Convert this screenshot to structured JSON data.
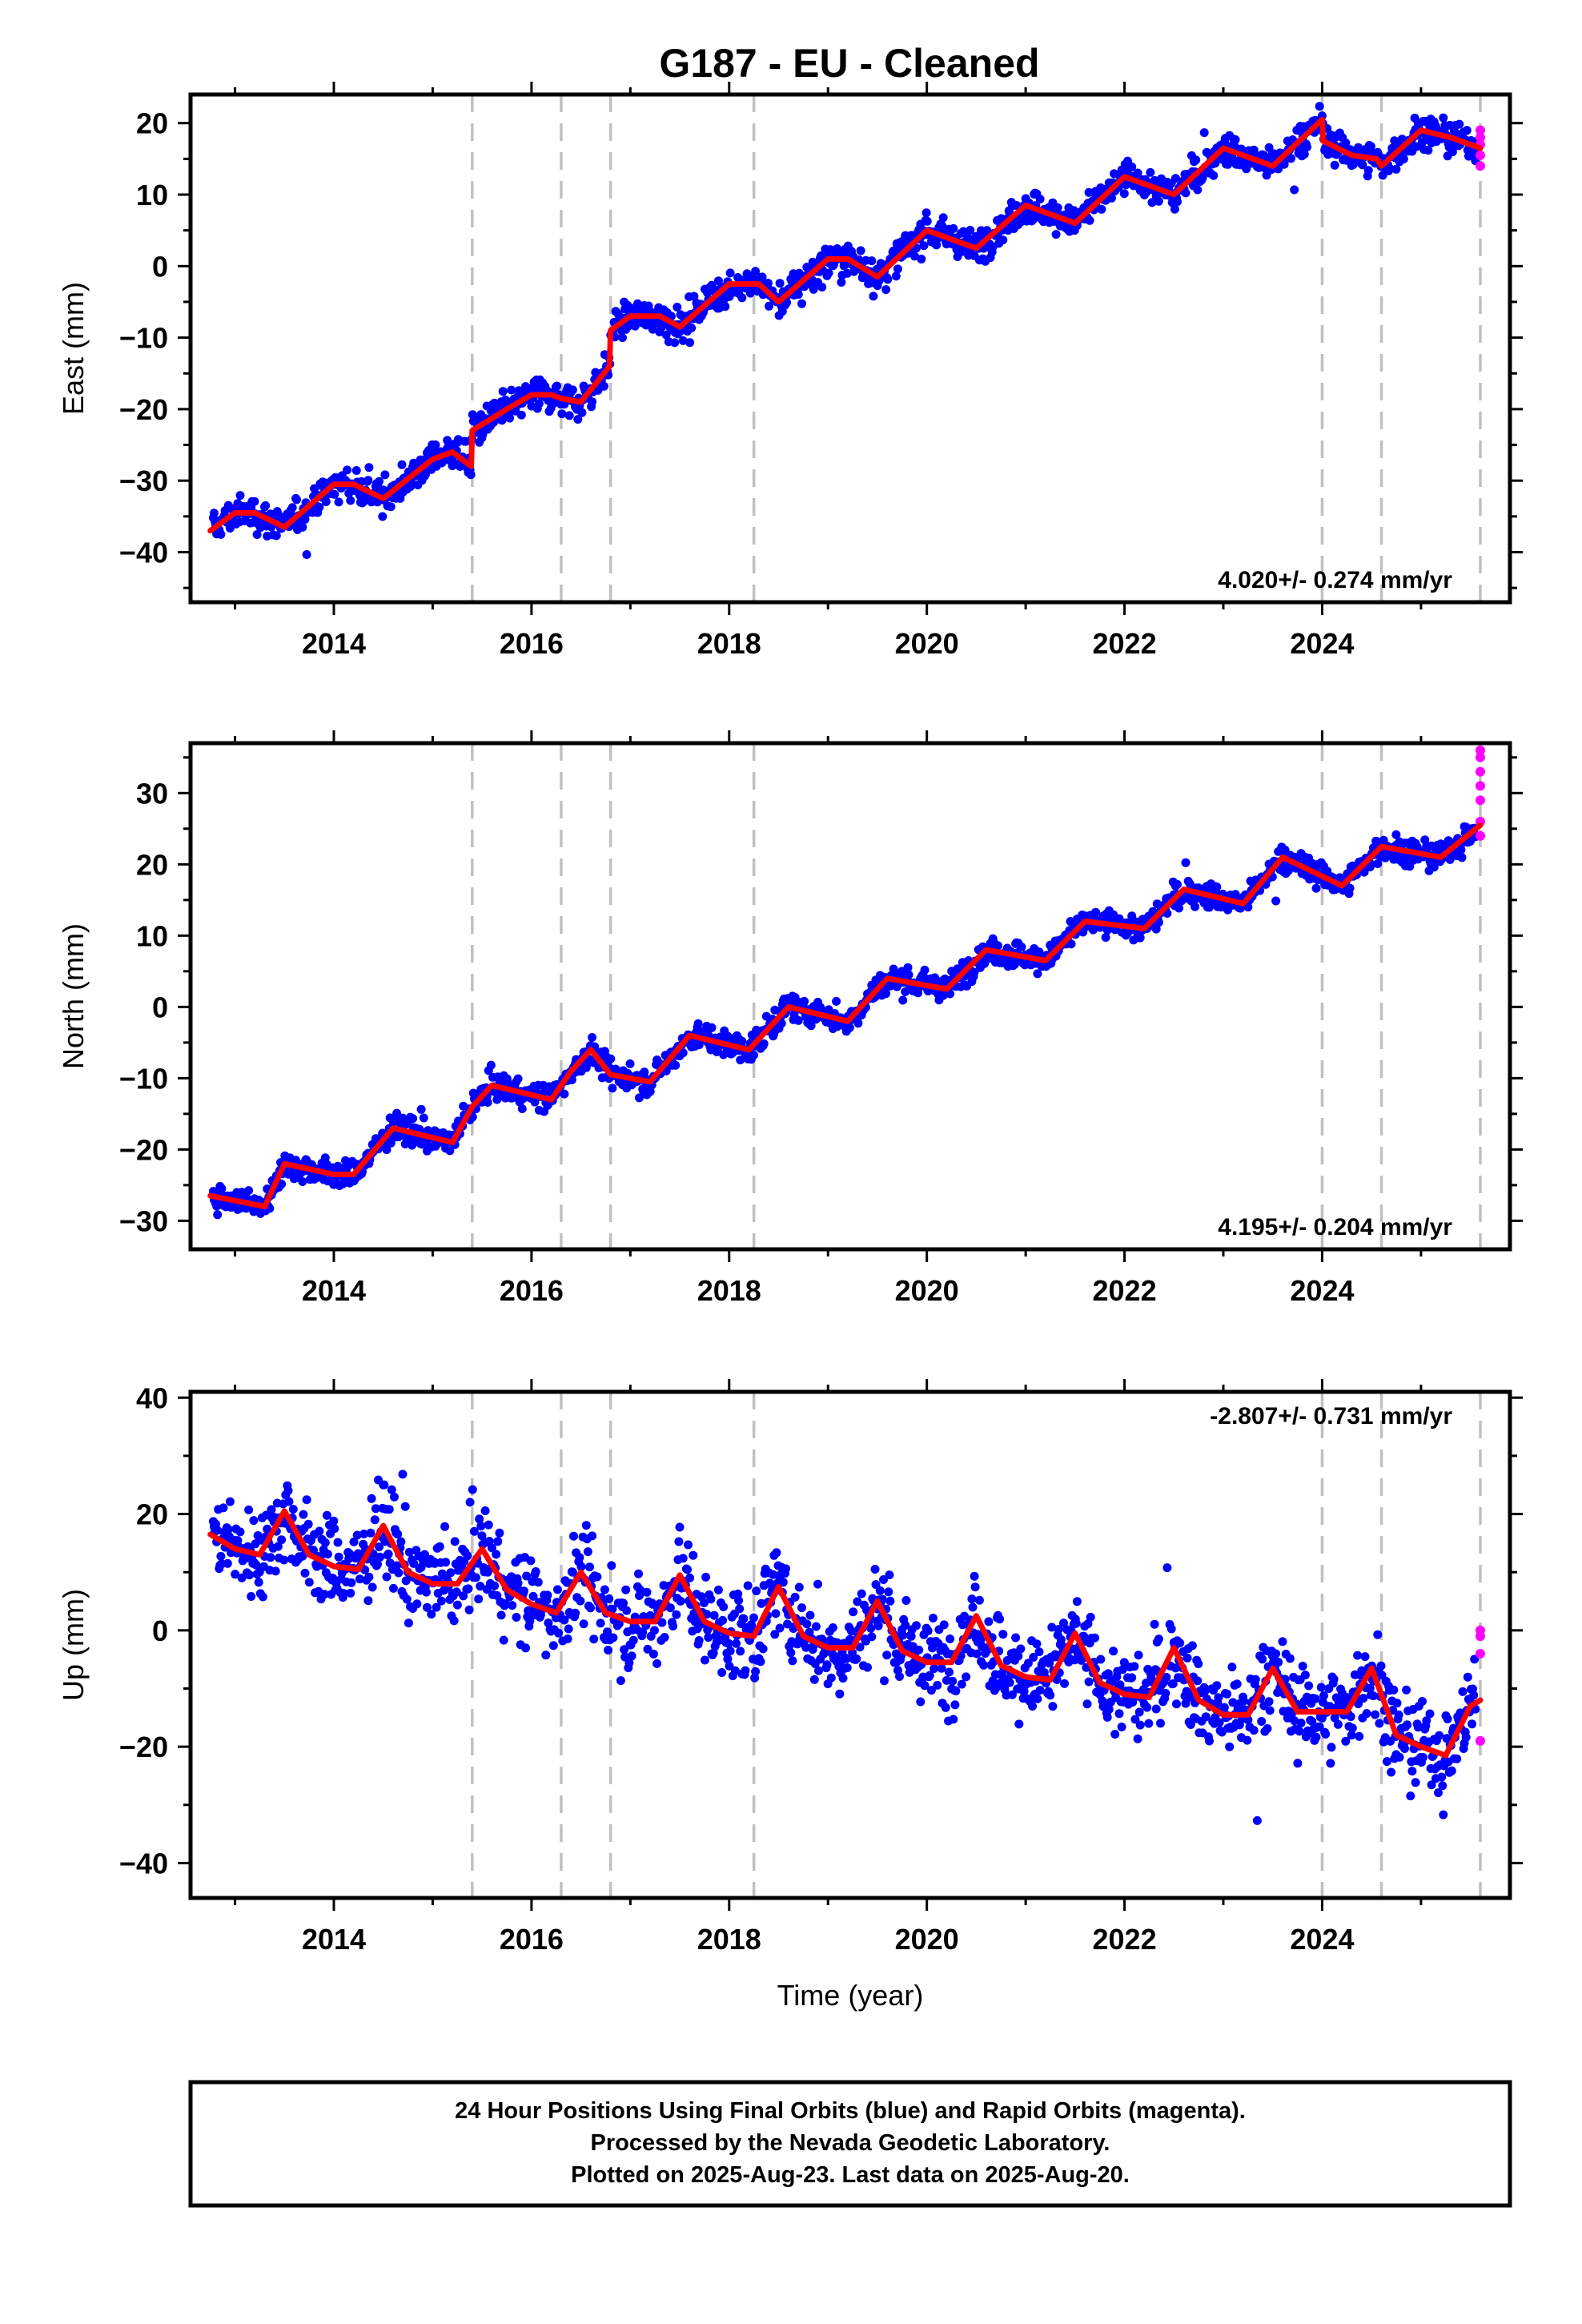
{
  "title": "G187  - EU - Cleaned",
  "colors": {
    "final_orbits": "#0000ff",
    "rapid_orbits": "#ff00ff",
    "model": "#ff0000",
    "offsets": "#c0c0c0",
    "frame": "#000000"
  },
  "chart_data": [
    {
      "type": "scatter",
      "ylabel": "East (mm)",
      "rate": "4.020+/- 0.274 mm/yr",
      "xlim": [
        2012.55,
        2025.9
      ],
      "ylim": [
        -47,
        24
      ],
      "x_ticks": [
        2014,
        2016,
        2018,
        2020,
        2022,
        2024
      ],
      "y_ticks": [
        -40,
        -30,
        -20,
        -10,
        0,
        10,
        20
      ],
      "offset_lines": [
        2015.4,
        2016.3,
        2016.8,
        2018.25,
        2024.0,
        2024.6,
        2025.6
      ],
      "series": [
        {
          "kind": "model",
          "x": [
            2012.75,
            2013.0,
            2013.2,
            2013.5,
            2014.0,
            2014.2,
            2014.5,
            2015.0,
            2015.2,
            2015.39,
            2015.4,
            2015.75,
            2016.0,
            2016.2,
            2016.3,
            2016.5,
            2016.79,
            2016.8,
            2017.0,
            2017.3,
            2017.5,
            2018.0,
            2018.3,
            2018.5,
            2019.0,
            2019.2,
            2019.5,
            2020.0,
            2020.5,
            2021.0,
            2021.5,
            2022.0,
            2022.5,
            2023.0,
            2023.5,
            2024.0,
            2024.01,
            2024.3,
            2024.55,
            2024.6,
            2025.0,
            2025.3,
            2025.6
          ],
          "y": [
            -37,
            -34.5,
            -34.5,
            -36.5,
            -30.5,
            -30.5,
            -32.5,
            -27,
            -26,
            -28,
            -23,
            -20,
            -18,
            -18,
            -18.5,
            -19,
            -14,
            -9,
            -7,
            -7,
            -8.5,
            -2.5,
            -2.5,
            -5,
            1,
            1,
            -1.5,
            5,
            2.5,
            8.5,
            6,
            12.5,
            10,
            16.5,
            14,
            20.5,
            17.5,
            15.5,
            15,
            14,
            19,
            18,
            16.5
          ]
        },
        {
          "kind": "final",
          "trend": [
            [
              2012.8,
              -41.5
            ],
            [
              2015.4,
              -27.5
            ],
            [
              2016.8,
              -10
            ],
            [
              2025.6,
              15.5
            ]
          ],
          "seasonal_amplitude": 2.3,
          "scatter": 1.6,
          "x_range": [
            2012.78,
            2025.55
          ]
        },
        {
          "kind": "rapid",
          "x": [
            2025.6,
            2025.6,
            2025.6,
            2025.6,
            2025.6
          ],
          "y": [
            19,
            18,
            17,
            15.5,
            14
          ]
        }
      ]
    },
    {
      "type": "scatter",
      "ylabel": "North (mm)",
      "rate": "4.195+/- 0.204 mm/yr",
      "xlim": [
        2012.55,
        2025.9
      ],
      "ylim": [
        -34,
        37
      ],
      "x_ticks": [
        2014,
        2016,
        2018,
        2020,
        2022,
        2024
      ],
      "y_ticks": [
        -30,
        -20,
        -10,
        0,
        10,
        20,
        30
      ],
      "offset_lines": [
        2015.4,
        2016.3,
        2016.8,
        2018.25,
        2024.0,
        2024.6,
        2025.6
      ],
      "series": [
        {
          "kind": "model",
          "x": [
            2012.75,
            2013.3,
            2013.5,
            2014.0,
            2014.2,
            2014.6,
            2015.2,
            2015.4,
            2015.6,
            2016.2,
            2016.4,
            2016.6,
            2016.8,
            2017.2,
            2017.6,
            2018.2,
            2018.6,
            2019.2,
            2019.6,
            2020.2,
            2020.6,
            2021.2,
            2021.6,
            2022.2,
            2022.6,
            2023.2,
            2023.6,
            2024.2,
            2024.6,
            2025.2,
            2025.6
          ],
          "y": [
            -26.5,
            -28,
            -22,
            -23.5,
            -23.5,
            -17,
            -19,
            -14,
            -11,
            -13,
            -9,
            -6,
            -9.5,
            -10.5,
            -4,
            -6,
            0,
            -2,
            4,
            2.5,
            8,
            6.5,
            12,
            11,
            16.5,
            14.5,
            21,
            17,
            22.5,
            21,
            25.5
          ]
        },
        {
          "kind": "final",
          "trend": [
            [
              2012.8,
              -28
            ],
            [
              2025.6,
              25
            ]
          ],
          "seasonal_amplitude": 2.0,
          "scatter": 1.3,
          "x_range": [
            2012.78,
            2025.55
          ]
        },
        {
          "kind": "rapid",
          "x": [
            2025.6,
            2025.6,
            2025.6,
            2025.6,
            2025.6,
            2025.6,
            2025.6
          ],
          "y": [
            36,
            35,
            33,
            31,
            29,
            26,
            24
          ]
        }
      ]
    },
    {
      "type": "scatter",
      "ylabel": "Up (mm)",
      "xlabel": "Time (year)",
      "rate": "-2.807+/- 0.731 mm/yr",
      "xlim": [
        2012.55,
        2025.9
      ],
      "ylim": [
        -46,
        41
      ],
      "x_ticks": [
        2014,
        2016,
        2018,
        2020,
        2022,
        2024
      ],
      "y_ticks": [
        -40,
        -20,
        0,
        20,
        40
      ],
      "offset_lines": [
        2015.4,
        2016.3,
        2016.8,
        2018.25,
        2024.0,
        2024.6,
        2025.6
      ],
      "series": [
        {
          "kind": "model",
          "x": [
            2012.75,
            2013.0,
            2013.25,
            2013.5,
            2013.75,
            2014.0,
            2014.25,
            2014.5,
            2014.75,
            2015.0,
            2015.25,
            2015.5,
            2015.75,
            2016.0,
            2016.25,
            2016.5,
            2016.75,
            2017.0,
            2017.25,
            2017.5,
            2017.75,
            2018.0,
            2018.25,
            2018.5,
            2018.75,
            2019.0,
            2019.25,
            2019.5,
            2019.75,
            2020.0,
            2020.25,
            2020.5,
            2020.75,
            2021.0,
            2021.25,
            2021.5,
            2021.75,
            2022.0,
            2022.25,
            2022.5,
            2022.75,
            2023.0,
            2023.25,
            2023.5,
            2023.75,
            2024.0,
            2024.25,
            2024.5,
            2024.75,
            2025.0,
            2025.25,
            2025.5,
            2025.6
          ],
          "y": [
            16.5,
            14,
            13,
            20.5,
            13,
            11,
            10.5,
            18,
            10,
            8,
            8,
            14,
            7,
            4.5,
            3,
            10,
            3,
            1.5,
            1.5,
            9.5,
            1.5,
            -0.5,
            -1,
            7.5,
            -1,
            -3,
            -3,
            5,
            -3.5,
            -5.5,
            -5.5,
            2.5,
            -6,
            -8,
            -8.5,
            -0.5,
            -9,
            -11,
            -11.5,
            -3,
            -12,
            -14.5,
            -14.5,
            -6.5,
            -14,
            -14,
            -14,
            -6.5,
            -18,
            -20,
            -21.5,
            -13,
            -12
          ]
        },
        {
          "kind": "final",
          "trend": [
            [
              2012.8,
              15
            ],
            [
              2025.55,
              -20
            ]
          ],
          "seasonal_amplitude": 6.0,
          "scatter": 5.5,
          "x_range": [
            2012.78,
            2025.55
          ]
        },
        {
          "kind": "rapid",
          "x": [
            2025.6,
            2025.6,
            2025.6,
            2025.6
          ],
          "y": [
            0,
            -1,
            -4,
            -19
          ]
        }
      ]
    }
  ],
  "footer": {
    "line1": "24 Hour Positions Using Final Orbits (blue) and Rapid Orbits (magenta).",
    "line2": "Processed by the Nevada Geodetic Laboratory.",
    "line3": "Plotted on 2025-Aug-23. Last data on 2025-Aug-20."
  }
}
